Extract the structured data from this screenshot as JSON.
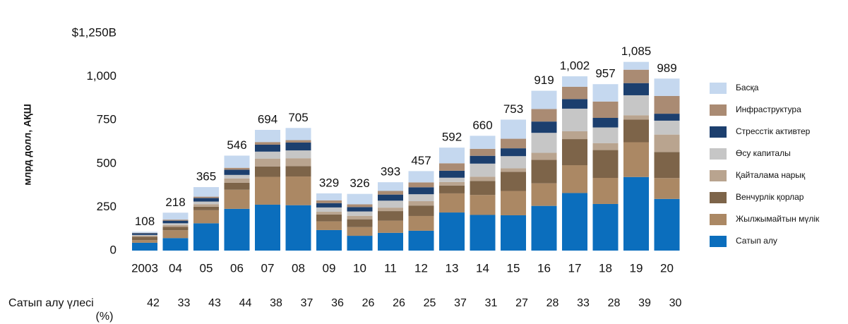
{
  "chart_data": {
    "type": "stacked_bar",
    "y_label": "млрд долл, АҚШ",
    "categories": [
      "2003",
      "04",
      "05",
      "06",
      "07",
      "08",
      "09",
      "10",
      "11",
      "12",
      "13",
      "14",
      "15",
      "16",
      "17",
      "18",
      "19",
      "20"
    ],
    "ylim": [
      0,
      1250
    ],
    "yticks": [
      0,
      250,
      500,
      750,
      {
        "value": 1000,
        "label": "1,000"
      },
      {
        "value": 1250,
        "label": "$1,250B"
      }
    ],
    "series": [
      {
        "name": "Сатып алу",
        "color": "#0b6ebd",
        "values": [
          45,
          72,
          157,
          240,
          264,
          261,
          118,
          85,
          102,
          114,
          219,
          205,
          203,
          257,
          331,
          268,
          423,
          297
        ]
      },
      {
        "name": "Жылжымайтын мүлік",
        "color": "#ab8864",
        "values": [
          15,
          45,
          75,
          110,
          160,
          165,
          50,
          50,
          70,
          85,
          110,
          115,
          140,
          130,
          160,
          150,
          200,
          120
        ]
      },
      {
        "name": "Венчурлік қорлар",
        "color": "#7d6449",
        "values": [
          20,
          20,
          20,
          40,
          60,
          60,
          40,
          45,
          55,
          60,
          45,
          80,
          110,
          135,
          150,
          160,
          130,
          150
        ]
      },
      {
        "name": "Қайталама нарық",
        "color": "#b9a48f",
        "values": [
          5,
          10,
          15,
          25,
          45,
          45,
          15,
          20,
          20,
          25,
          20,
          25,
          20,
          40,
          45,
          40,
          25,
          100
        ]
      },
      {
        "name": "Өсу капиталы",
        "color": "#c6c6c6",
        "values": [
          5,
          10,
          15,
          20,
          40,
          45,
          25,
          25,
          40,
          40,
          25,
          75,
          70,
          115,
          130,
          90,
          115,
          80
        ]
      },
      {
        "name": "Стресстік активтер",
        "color": "#1c3f6e",
        "values": [
          10,
          15,
          20,
          30,
          40,
          45,
          25,
          25,
          35,
          40,
          40,
          45,
          45,
          65,
          55,
          55,
          70,
          40
        ]
      },
      {
        "name": "Инфраструктура",
        "color": "#aa8b73",
        "values": [
          2,
          6,
          8,
          11,
          15,
          14,
          16,
          16,
          21,
          28,
          43,
          40,
          55,
          72,
          71,
          94,
          77,
          102
        ]
      },
      {
        "name": "Басқа",
        "color": "#c5d8ef",
        "values": [
          6,
          40,
          55,
          70,
          70,
          70,
          40,
          60,
          50,
          65,
          90,
          75,
          110,
          105,
          60,
          100,
          45,
          100
        ]
      }
    ],
    "totals": {
      "values": [
        108,
        218,
        365,
        546,
        694,
        705,
        329,
        326,
        393,
        457,
        592,
        660,
        753,
        919,
        1002,
        957,
        1085,
        989
      ],
      "value_labels": [
        "108",
        "218",
        "365",
        "546",
        "694",
        "705",
        "329",
        "326",
        "393",
        "457",
        "592",
        "660",
        "753",
        "919",
        "1,002",
        "957",
        "1,085",
        "989"
      ]
    },
    "share": {
      "label": [
        "Сатып алу үлесі",
        "(%)"
      ],
      "values": [
        42,
        33,
        43,
        44,
        38,
        37,
        36,
        26,
        26,
        25,
        37,
        31,
        27,
        28,
        33,
        28,
        39,
        30
      ]
    }
  }
}
